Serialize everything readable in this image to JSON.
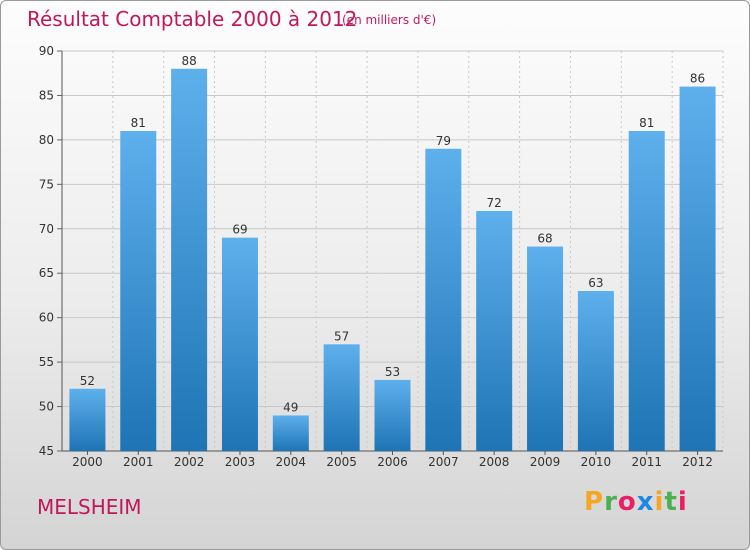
{
  "header": {
    "title": "Résultat Comptable 2000 à 2012",
    "unit": "(en milliers d'€)"
  },
  "commune": "MELSHEIM",
  "logo": {
    "letters": [
      "P",
      "r",
      "o",
      "x",
      "i",
      "t",
      "i"
    ],
    "colors": [
      "#f5a623",
      "#4caf50",
      "#e91e63",
      "#1e88e5",
      "#f5a623",
      "#4caf50",
      "#e91e63"
    ]
  },
  "colors": {
    "bar_light": "#5eb0ec",
    "bar_dark": "#1e74b4",
    "accent": "#c2185b"
  },
  "chart_data": {
    "type": "bar",
    "categories": [
      "2000",
      "2001",
      "2002",
      "2003",
      "2004",
      "2005",
      "2006",
      "2007",
      "2008",
      "2009",
      "2010",
      "2011",
      "2012"
    ],
    "values": [
      52,
      81,
      88,
      69,
      49,
      57,
      53,
      79,
      72,
      68,
      63,
      81,
      86
    ],
    "ylim": [
      45,
      90
    ],
    "yticks": [
      45,
      50,
      55,
      60,
      65,
      70,
      75,
      80,
      85,
      90
    ],
    "grid": true,
    "legend": "none"
  }
}
